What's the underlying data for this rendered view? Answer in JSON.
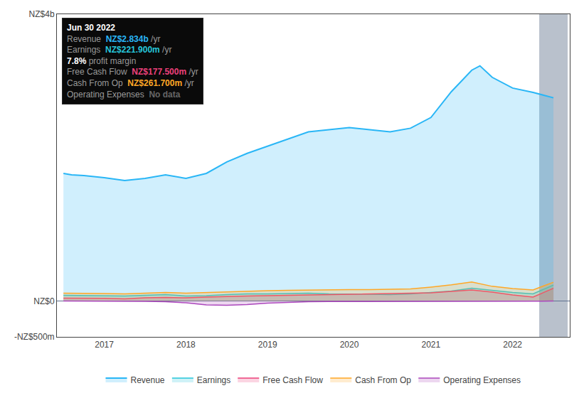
{
  "chart_data": {
    "type": "area",
    "xlim": [
      2016.42,
      2022.7
    ],
    "xticks": [
      2017,
      2018,
      2019,
      2020,
      2021,
      2022
    ],
    "ylim": [
      -0.5,
      4.0
    ],
    "yticks": [
      {
        "value": -0.5,
        "label": "-NZ$500m"
      },
      {
        "value": 0,
        "label": "NZ$0"
      },
      {
        "value": 4,
        "label": "NZ$4b"
      }
    ],
    "grid": false,
    "legend": "bottom",
    "series": [
      {
        "name": "Revenue",
        "color": "#29b6f6",
        "x": [
          2016.5,
          2016.6,
          2016.75,
          2017.0,
          2017.25,
          2017.5,
          2017.75,
          2018.0,
          2018.25,
          2018.5,
          2018.75,
          2019.0,
          2019.25,
          2019.5,
          2019.75,
          2020.0,
          2020.25,
          2020.5,
          2020.75,
          2021.0,
          2021.25,
          2021.5,
          2021.6,
          2021.75,
          2022.0,
          2022.25,
          2022.5
        ],
        "values": [
          1.78,
          1.76,
          1.75,
          1.72,
          1.68,
          1.71,
          1.76,
          1.71,
          1.78,
          1.94,
          2.06,
          2.16,
          2.26,
          2.36,
          2.39,
          2.42,
          2.39,
          2.36,
          2.41,
          2.56,
          2.92,
          3.22,
          3.28,
          3.12,
          2.97,
          2.91,
          2.834
        ]
      },
      {
        "name": "Earnings",
        "color": "#26c6da",
        "x": [
          2016.5,
          2016.75,
          2017.0,
          2017.25,
          2017.5,
          2017.75,
          2018.0,
          2018.25,
          2018.5,
          2018.75,
          2019.0,
          2019.25,
          2019.5,
          2019.75,
          2020.0,
          2020.25,
          2020.5,
          2020.75,
          2021.0,
          2021.25,
          2021.5,
          2021.75,
          2022.0,
          2022.25,
          2022.5
        ],
        "values": [
          0.08,
          0.075,
          0.072,
          0.07,
          0.08,
          0.09,
          0.07,
          0.075,
          0.09,
          0.1,
          0.1,
          0.105,
          0.11,
          0.1,
          0.1,
          0.095,
          0.09,
          0.1,
          0.12,
          0.14,
          0.18,
          0.15,
          0.12,
          0.1,
          0.2219
        ]
      },
      {
        "name": "Free Cash Flow",
        "color": "#ec407a",
        "x": [
          2016.5,
          2016.75,
          2017.0,
          2017.25,
          2017.5,
          2017.75,
          2018.0,
          2018.25,
          2018.5,
          2018.75,
          2019.0,
          2019.25,
          2019.5,
          2019.75,
          2020.0,
          2020.25,
          2020.5,
          2020.75,
          2021.0,
          2021.25,
          2021.5,
          2021.75,
          2022.0,
          2022.25,
          2022.5
        ],
        "values": [
          0.04,
          0.04,
          0.038,
          0.03,
          0.045,
          0.05,
          0.045,
          0.055,
          0.065,
          0.07,
          0.075,
          0.08,
          0.085,
          0.09,
          0.095,
          0.1,
          0.1,
          0.105,
          0.115,
          0.135,
          0.155,
          0.125,
          0.085,
          0.055,
          0.1775
        ]
      },
      {
        "name": "Cash From Op",
        "color": "#ffa726",
        "x": [
          2016.5,
          2016.75,
          2017.0,
          2017.25,
          2017.5,
          2017.75,
          2018.0,
          2018.25,
          2018.5,
          2018.75,
          2019.0,
          2019.25,
          2019.5,
          2019.75,
          2020.0,
          2020.25,
          2020.5,
          2020.75,
          2021.0,
          2021.25,
          2021.5,
          2021.75,
          2022.0,
          2022.25,
          2022.5
        ],
        "values": [
          0.11,
          0.11,
          0.105,
          0.1,
          0.11,
          0.12,
          0.11,
          0.12,
          0.13,
          0.14,
          0.145,
          0.15,
          0.155,
          0.155,
          0.16,
          0.16,
          0.165,
          0.17,
          0.195,
          0.225,
          0.265,
          0.205,
          0.175,
          0.155,
          0.2617
        ]
      },
      {
        "name": "Operating Expenses",
        "color": "#ab47bc",
        "x": [
          2016.5,
          2016.75,
          2017.0,
          2017.25,
          2017.5,
          2017.75,
          2018.0,
          2018.25,
          2018.5,
          2018.75,
          2019.0,
          2019.25,
          2019.5,
          2019.75,
          2020.0,
          2020.25,
          2020.5,
          2020.75,
          2021.0,
          2021.25,
          2021.5,
          2021.75,
          2022.0,
          2022.25,
          2022.5
        ],
        "values": [
          0.0,
          0.0,
          0.0,
          0.0,
          -0.005,
          -0.01,
          -0.025,
          -0.055,
          -0.06,
          -0.05,
          -0.03,
          -0.02,
          -0.01,
          -0.008,
          -0.008,
          -0.008,
          -0.007,
          -0.007,
          -0.007,
          -0.007,
          -0.007,
          -0.006,
          -0.005,
          -0.003,
          0.0
        ]
      }
    ],
    "highlight_x": 2022.5,
    "highlight_color": "#3a5070",
    "annotations": {
      "title": "Jun 30 2022",
      "rows": [
        {
          "label": "Revenue",
          "value": "NZ$2.834b",
          "suffix": " /yr",
          "color": "#29b6f6"
        },
        {
          "label": "Earnings",
          "value": "NZ$221.900m",
          "suffix": " /yr",
          "color": "#26c6da"
        },
        {
          "value": "7.8%",
          "suffix": " profit margin",
          "color": "#ffffff"
        },
        {
          "label": "Free Cash Flow",
          "value": "NZ$177.500m",
          "suffix": " /yr",
          "color": "#ec407a"
        },
        {
          "label": "Cash From Op",
          "value": "NZ$261.700m",
          "suffix": " /yr",
          "color": "#ffa726"
        },
        {
          "label": "Operating Expenses",
          "value": "No data",
          "color": "#666666"
        }
      ]
    }
  }
}
